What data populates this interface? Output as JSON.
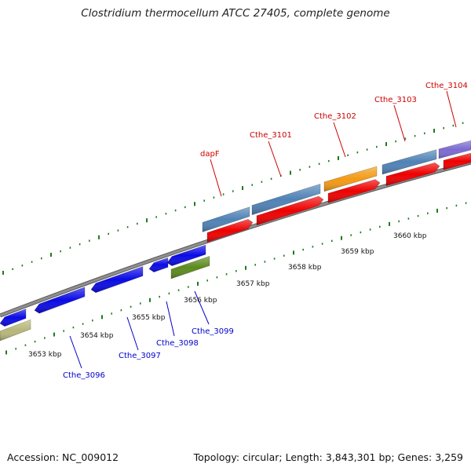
{
  "title": "Clostridium thermocellum ATCC 27405, complete genome",
  "footer": {
    "accession": "Accession: NC_009012",
    "summary": "Topology: circular; Length: 3,843,301 bp; Genes: 3,259"
  },
  "colors": {
    "backbone": "#8f8f8f",
    "tick": "#1e7a1e",
    "label_top": "#cc0000",
    "label_bottom": "#0000cc",
    "cds_red": "#ee0000",
    "gene_steelblue": "#4f82b6",
    "gene_orange": "#f39a14",
    "gene_purple": "#7b6bd1",
    "gene_blue": "#0a0ae6",
    "gene_olive": "#5c8a1e",
    "gene_khaki": "#b7b77a"
  },
  "scale_labels": [
    "3653 kbp",
    "3654 kbp",
    "3655 kbp",
    "3656 kbp",
    "3657 kbp",
    "3658 kbp",
    "3659 kbp",
    "3660 kbp"
  ],
  "gene_labels_top": [
    "dapF",
    "Cthe_3101",
    "Cthe_3102",
    "Cthe_3103",
    "Cthe_3104"
  ],
  "gene_labels_bottom": [
    "Cthe_3096",
    "Cthe_3097",
    "Cthe_3098",
    "Cthe_3099"
  ]
}
